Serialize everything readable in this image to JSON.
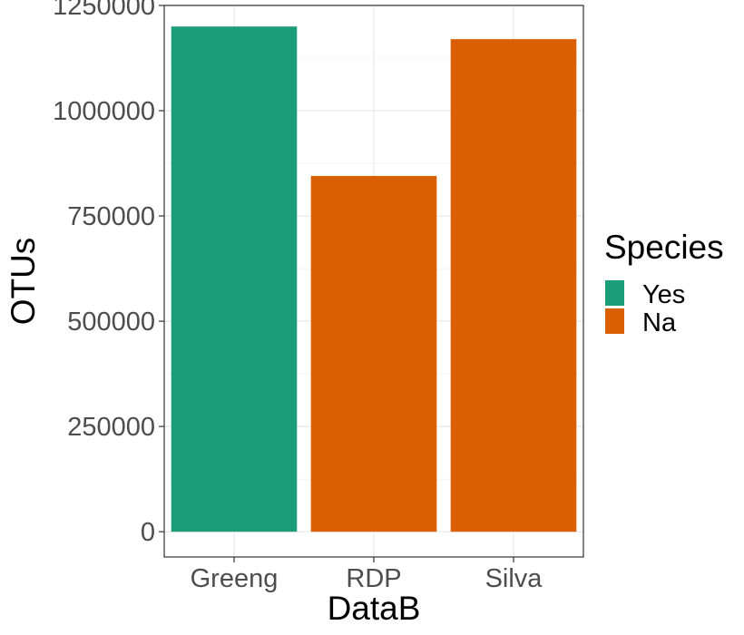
{
  "chart_data": {
    "type": "bar",
    "categories": [
      "Greeng",
      "RDP",
      "Silva"
    ],
    "values": [
      1200000,
      845000,
      1170000
    ],
    "fill_group": [
      "Yes",
      "Na",
      "Na"
    ],
    "xlabel": "DataB",
    "ylabel": "OTUs",
    "ylim": [
      -60000,
      1250000
    ],
    "yticks": [
      0,
      250000,
      500000,
      750000,
      1000000,
      1250000
    ],
    "ytick_labels": [
      "0",
      "250000",
      "500000",
      "750000",
      "1000000",
      "1250000"
    ],
    "grid": true,
    "legend": {
      "title": "Species",
      "position": "right",
      "entries": [
        {
          "label": "Yes",
          "color": "#1b9e77"
        },
        {
          "label": "Na",
          "color": "#d95f02"
        }
      ]
    },
    "colors": {
      "Yes": "#1b9e77",
      "Na": "#d95f02"
    }
  }
}
